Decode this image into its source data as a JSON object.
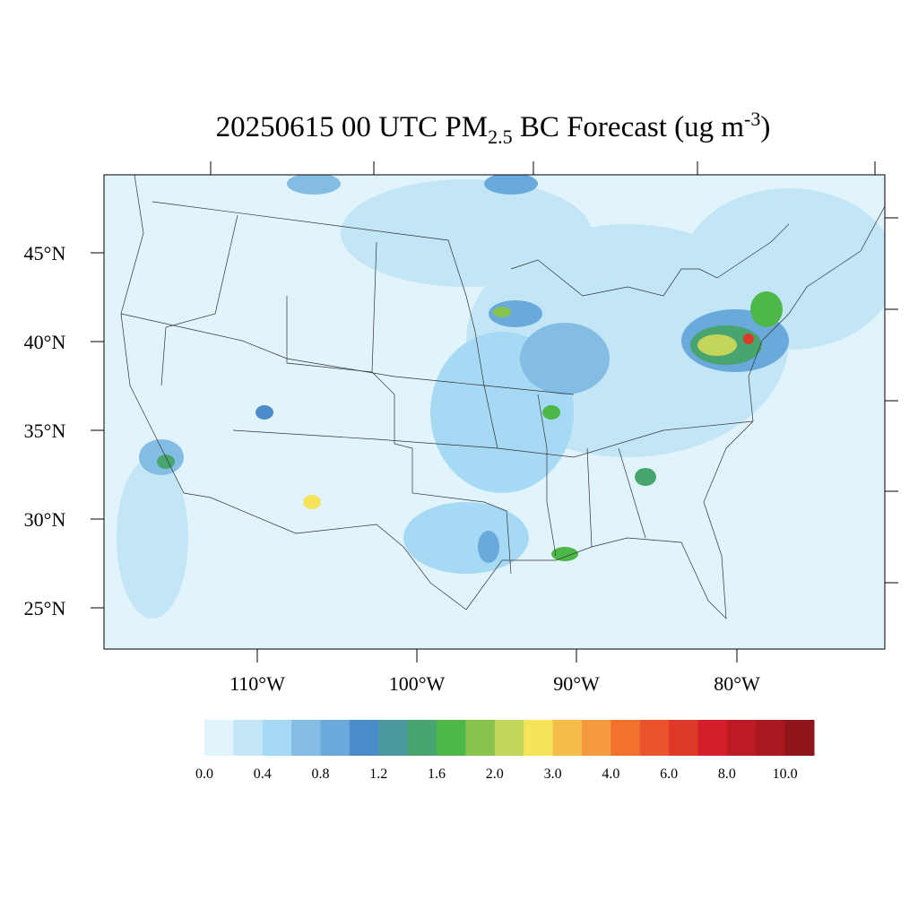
{
  "title": {
    "parts": [
      "20250615 00 UTC PM",
      "2.5",
      " BC Forecast (ug m",
      "-3",
      ")"
    ]
  },
  "map": {
    "lat_labels": [
      "45°N",
      "40°N",
      "35°N",
      "30°N",
      "25°N"
    ],
    "lon_labels": [
      "110°W",
      "100°W",
      "90°W",
      "80°W"
    ]
  },
  "colorbar": {
    "colors": [
      "#e1f3fb",
      "#c3e6f6",
      "#a6daf4",
      "#84bde3",
      "#6aa9db",
      "#4a8cca",
      "#4a9ba0",
      "#48a56f",
      "#4db848",
      "#86c44e",
      "#c3d55a",
      "#f5e35a",
      "#f6bc4a",
      "#f59a3e",
      "#f2712d",
      "#ea542c",
      "#de3a27",
      "#d21f2a",
      "#bc1b24",
      "#a8181e",
      "#8e1519"
    ],
    "labels": [
      "0.0",
      "0.4",
      "0.8",
      "1.2",
      "1.6",
      "2.0",
      "3.0",
      "4.0",
      "6.0",
      "8.0",
      "10.0"
    ]
  }
}
